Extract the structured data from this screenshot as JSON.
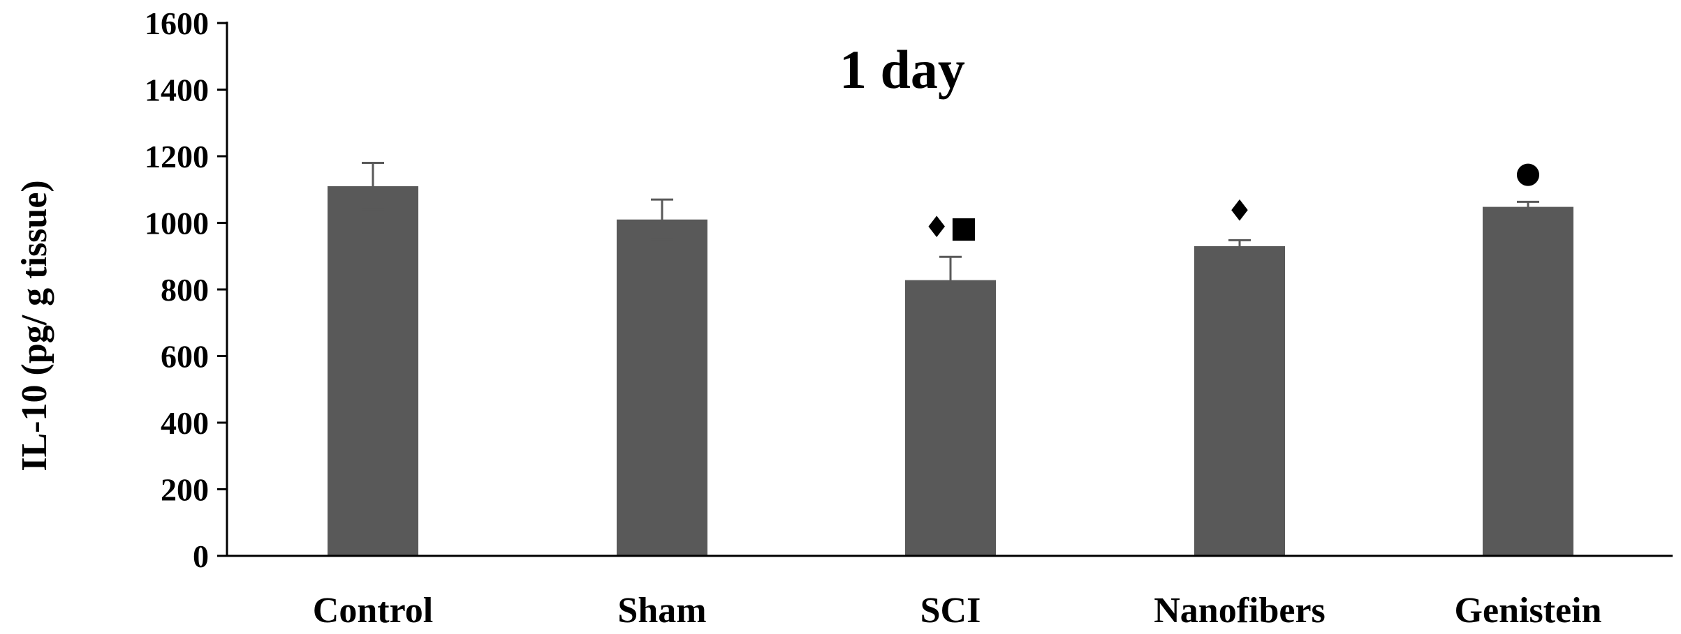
{
  "chart_data": {
    "type": "bar",
    "title": "1 day",
    "xlabel": "",
    "ylabel": "IL-10 (pg/ g tissue)",
    "ylim": [
      0,
      1600
    ],
    "yticks": [
      0,
      200,
      400,
      600,
      800,
      1000,
      1200,
      1400,
      1600
    ],
    "categories": [
      "Control",
      "Sham",
      "SCI",
      "Nanofibers",
      "Genistein"
    ],
    "values": [
      1110,
      1010,
      828,
      930,
      1048
    ],
    "errors": [
      70,
      60,
      70,
      18,
      15
    ],
    "significance_marks": [
      "",
      "",
      "♦■",
      "♦",
      "●"
    ],
    "bar_color": "#595959",
    "error_color": "#595959",
    "grid": false,
    "legend": "none"
  }
}
